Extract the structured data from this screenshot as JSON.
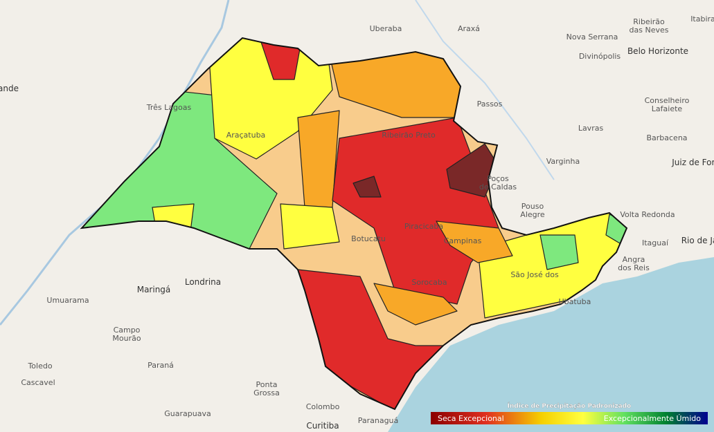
{
  "places": [
    "Uberaba",
    "Araxá",
    "Ribeirão",
    "das Neves",
    "Itabira",
    "Nova Serrana",
    "Divinópolis",
    "Belo Horizonte",
    "Passos",
    "Conselheiro",
    "Lafaiete",
    "Barbacena",
    "Lavras",
    "Juiz de Fora",
    "Varginha",
    "Poços",
    "de Caldas",
    "Pouso",
    "Alegre",
    "Volta Redonda",
    "Itaguaí",
    "Rio de Ja",
    "Angra",
    "dos Reis",
    "Três Lagoas",
    "Maringá",
    "Londrina",
    "Umuarama",
    "Campo",
    "Mourão",
    "Paraná",
    "Toledo",
    "Cascavel",
    "Ponta",
    "Grossa",
    "Guarapuava",
    "Colombo",
    "Curitiba",
    "Paranaguá",
    "Ribeirão Preto",
    "Piracicaba",
    "Sorocaba",
    "São José dos",
    "Campinas",
    "Ubatuba",
    "Botucatu",
    "Araçatuba",
    "ande"
  ],
  "legend": {
    "title": "Índice de Precipitação Padronizado",
    "low": "Seca Excepcional",
    "high": "Excepcionalmente Úmido"
  }
}
